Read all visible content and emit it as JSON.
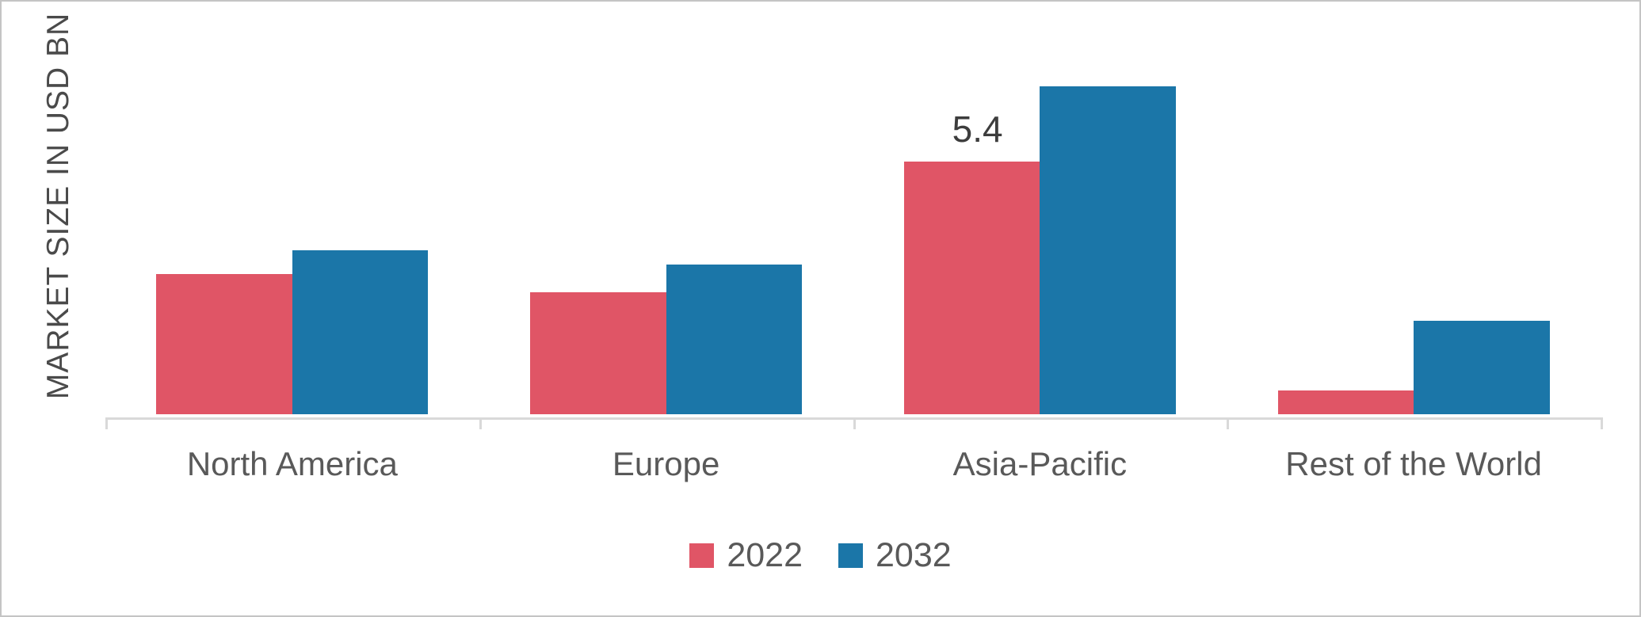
{
  "chart_data": {
    "type": "bar",
    "title": "",
    "xlabel": "",
    "ylabel": "MARKET SIZE IN USD BN",
    "categories": [
      "North America",
      "Europe",
      "Asia-Pacific",
      "Rest of the World"
    ],
    "series": [
      {
        "name": "2022",
        "color": "#E05566",
        "values": [
          3.0,
          2.6,
          5.4,
          0.5
        ]
      },
      {
        "name": "2032",
        "color": "#1B76A8",
        "values": [
          3.5,
          3.2,
          7.0,
          2.0
        ]
      }
    ],
    "annotations": [
      {
        "series_index": 0,
        "category_index": 2,
        "text": "5.4"
      }
    ],
    "ylim": [
      0,
      7.5
    ],
    "grid": false,
    "legend_position": "bottom",
    "axis_color": "#D9D9D9",
    "label_color": "#595959",
    "annotation_color": "#3D3D3D"
  },
  "legend": {
    "items": [
      {
        "label": "2022",
        "color": "#E05566"
      },
      {
        "label": "2032",
        "color": "#1B76A8"
      }
    ]
  }
}
